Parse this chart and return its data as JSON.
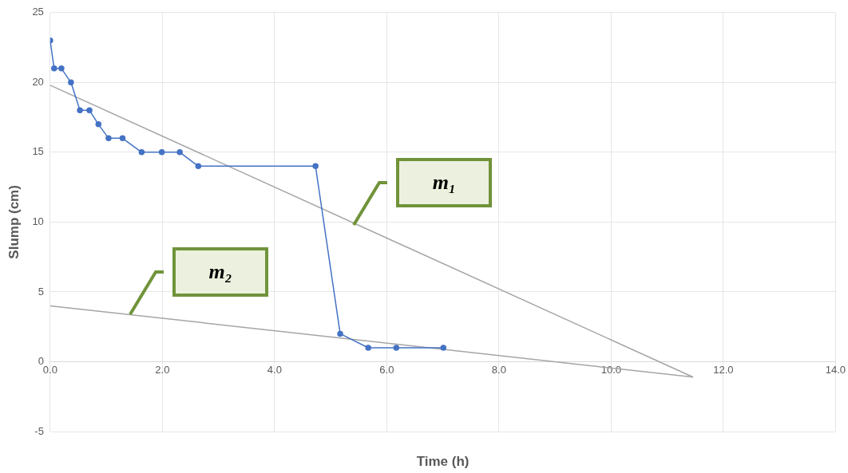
{
  "chart_data": {
    "type": "line",
    "xlabel": "Time (h)",
    "ylabel": "Slump (cm)",
    "xlim": [
      0,
      14
    ],
    "xticks": [
      {
        "value": 0,
        "label": "0.0"
      },
      {
        "value": 2,
        "label": "2.0"
      },
      {
        "value": 4,
        "label": "4.0"
      },
      {
        "value": 6,
        "label": "6.0"
      },
      {
        "value": 8,
        "label": "8.0"
      },
      {
        "value": 10,
        "label": "10.0"
      },
      {
        "value": 12,
        "label": "12.0"
      },
      {
        "value": 14,
        "label": "14.0"
      }
    ],
    "ylim": [
      -5,
      25
    ],
    "yticks": [
      -5,
      0,
      5,
      10,
      15,
      20,
      25
    ],
    "grid": true,
    "legend": false,
    "series": [
      {
        "color": "#4472c4",
        "marker": "circle",
        "x": [
          0,
          0.07,
          0.2,
          0.37,
          0.53,
          0.7,
          0.86,
          1.04,
          1.29,
          1.63,
          1.99,
          2.31,
          2.64,
          4.73,
          5.17,
          5.67,
          6.17,
          7.01
        ],
        "values": [
          23,
          21,
          21,
          20,
          18,
          18,
          17,
          16,
          16,
          15,
          15,
          15,
          14,
          14,
          2,
          1,
          1,
          1
        ]
      },
      {
        "color": "#a5a5a5",
        "marker": "none",
        "x": [
          0,
          11.46
        ],
        "values": [
          19.8,
          -1.1
        ]
      },
      {
        "color": "#a5a5a5",
        "marker": "none",
        "x": [
          0,
          11.46
        ],
        "values": [
          4,
          -1.1
        ]
      }
    ],
    "annotations": [
      "m₁",
      "m₂"
    ]
  }
}
